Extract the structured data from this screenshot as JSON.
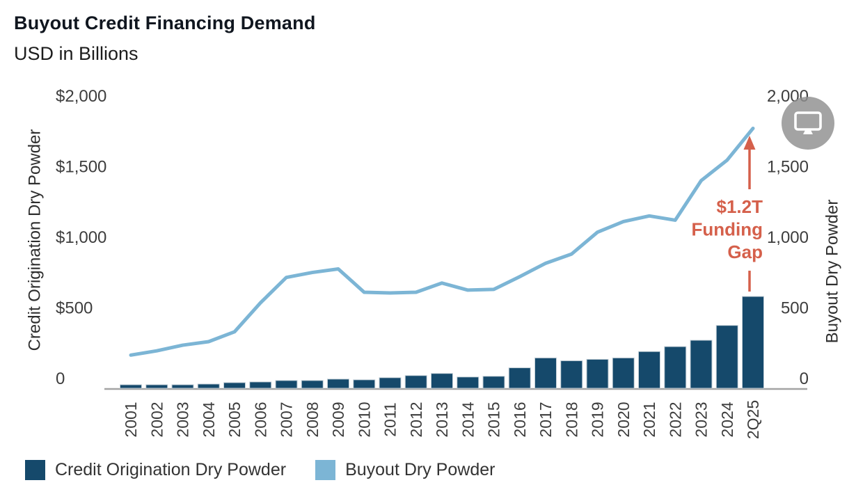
{
  "header": {},
  "chart_data": {
    "type": "bar+line",
    "title": "Buyout Credit Financing Demand",
    "subtitle": "USD in Billions",
    "categories": [
      "2001",
      "2002",
      "2003",
      "2004",
      "2005",
      "2006",
      "2007",
      "2008",
      "2009",
      "2010",
      "2011",
      "2012",
      "2013",
      "2014",
      "2015",
      "2016",
      "2017",
      "2018",
      "2019",
      "2020",
      "2021",
      "2022",
      "2023",
      "2024",
      "2Q25"
    ],
    "series": [
      {
        "name": "Credit Origination Dry Powder",
        "type": "bar",
        "axis": "left",
        "color": "#15496b",
        "values": [
          25,
          25,
          25,
          30,
          40,
          45,
          55,
          55,
          65,
          60,
          75,
          90,
          105,
          80,
          85,
          145,
          215,
          195,
          205,
          215,
          260,
          295,
          340,
          445,
          650
        ]
      },
      {
        "name": "Buyout Dry Powder",
        "type": "line",
        "axis": "right",
        "color": "#7cb5d5",
        "values": [
          235,
          265,
          305,
          330,
          400,
          605,
          785,
          820,
          845,
          680,
          675,
          680,
          745,
          695,
          700,
          790,
          885,
          950,
          1105,
          1180,
          1220,
          1190,
          1470,
          1615,
          1840
        ]
      }
    ],
    "left_axis": {
      "label": "Credit Origination Dry Powder",
      "ticks": [
        "$2,000",
        "$1,500",
        "$1,000",
        "$500",
        "0"
      ],
      "tick_values": [
        2000,
        1500,
        1000,
        500,
        0
      ],
      "range": [
        0,
        2000
      ]
    },
    "right_axis": {
      "label": "Buyout Dry Powder",
      "ticks": [
        "2,000",
        "1,500",
        "1,000",
        "500",
        "0"
      ],
      "tick_values": [
        2000,
        1500,
        1000,
        500,
        0
      ],
      "range": [
        0,
        2000
      ]
    },
    "grid": false,
    "legend_position": "bottom"
  },
  "annotation": {
    "lines": [
      "$1.2T",
      "Funding",
      "Gap"
    ],
    "color": "#d5604b"
  },
  "overlay": {
    "icon": "monitor-icon"
  },
  "colors": {
    "bar": "#15496b",
    "line": "#7cb5d5",
    "annotation": "#d5604b",
    "axis_line": "#a3a3a3",
    "tick_text": "#3d3d3d"
  }
}
